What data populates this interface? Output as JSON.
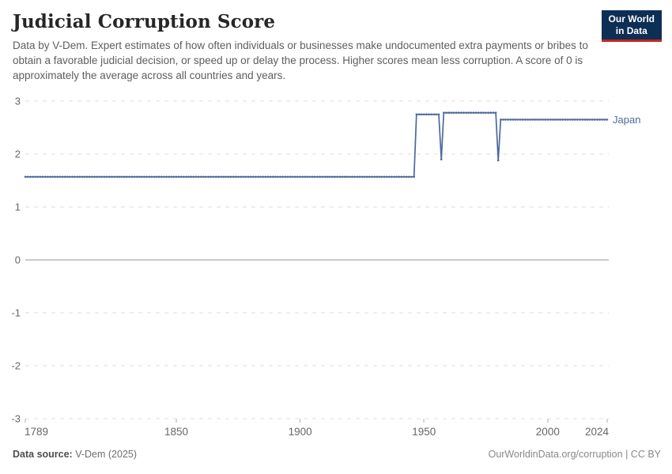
{
  "header": {
    "title": "Judicial Corruption Score",
    "subtitle": "Data by V-Dem. Expert estimates of how often individuals or businesses make undocumented extra payments or bribes to obtain a favorable judicial decision, or speed up or delay the process. Higher scores mean less corruption. A score of 0 is approximately the average across all countries and years.",
    "logo": {
      "line1": "Our World",
      "line2": "in Data",
      "bg_color": "#0d2e55",
      "accent_color": "#c3281f"
    }
  },
  "chart_data": {
    "type": "line",
    "title": "Judicial Corruption Score",
    "xlabel": "",
    "ylabel": "",
    "xlim": [
      1789,
      2024
    ],
    "ylim": [
      -3,
      3
    ],
    "x_ticks": [
      1789,
      1850,
      1900,
      1950,
      2000,
      2024
    ],
    "y_ticks": [
      3,
      2,
      1,
      0,
      -1,
      -2,
      -3
    ],
    "grid": "dashed horizontal, solid zero line",
    "legend_position": "end-of-line label",
    "series": [
      {
        "name": "Japan",
        "color": "#4c6a9c",
        "segments": [
          {
            "from": 1789,
            "to": 1946,
            "value": 1.57
          },
          {
            "from": 1947,
            "to": 1956,
            "value": 2.75
          },
          {
            "from": 1957,
            "to": 1957,
            "value": 1.9
          },
          {
            "from": 1958,
            "to": 1979,
            "value": 2.78
          },
          {
            "from": 1980,
            "to": 1980,
            "value": 1.88
          },
          {
            "from": 1981,
            "to": 2024,
            "value": 2.65
          }
        ]
      }
    ],
    "colors": {
      "gridline": "#dcdcdc",
      "zero_line": "#949494",
      "tick_text": "#666666",
      "tick_mark": "#b0b0b0"
    }
  },
  "footer": {
    "datasource_label": "Data source:",
    "datasource_value": "V-Dem (2025)",
    "origin_url": "OurWorldinData.org/corruption",
    "separator": "|",
    "license": "CC BY"
  }
}
